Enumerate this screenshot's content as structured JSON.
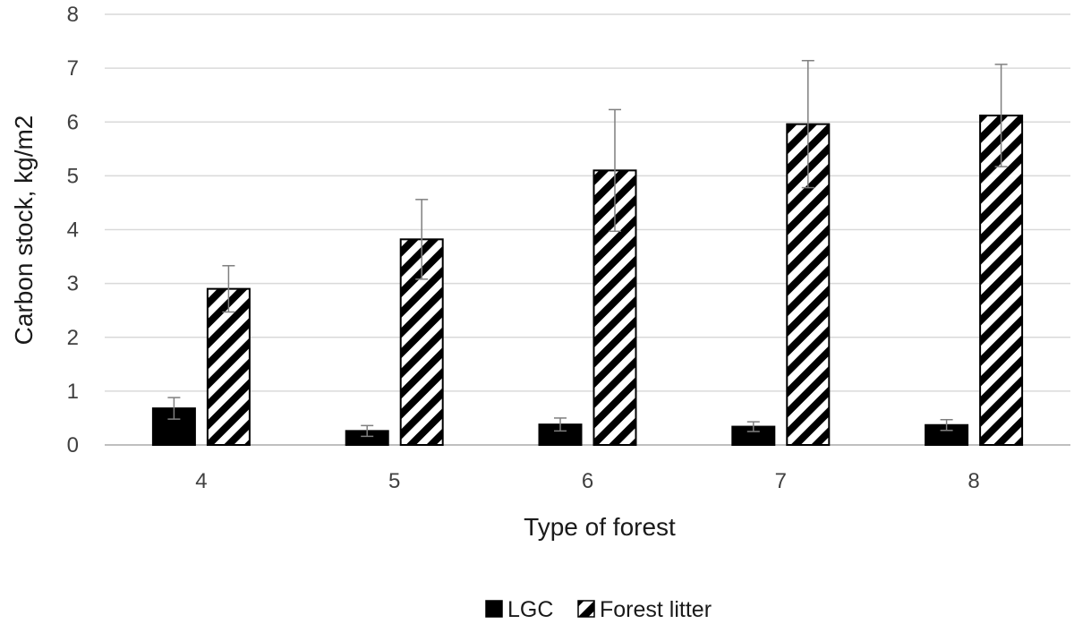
{
  "chart_data": {
    "type": "bar",
    "title": "",
    "xlabel": "Type of forest",
    "ylabel": "Carbon stock, kg/m2",
    "categories": [
      "4",
      "5",
      "6",
      "7",
      "8"
    ],
    "ylim": [
      0,
      8
    ],
    "yticks": [
      "0",
      "1",
      "2",
      "3",
      "4",
      "5",
      "6",
      "7",
      "8"
    ],
    "grid": true,
    "legend_position": "bottom",
    "series": [
      {
        "name": "LGC",
        "values": [
          0.68,
          0.26,
          0.38,
          0.34,
          0.37
        ],
        "errors": [
          0.2,
          0.1,
          0.12,
          0.09,
          0.1
        ],
        "fill": "solid",
        "color": "#000000"
      },
      {
        "name": "Forest litter",
        "values": [
          2.9,
          3.82,
          5.1,
          5.96,
          6.12
        ],
        "errors": [
          0.43,
          0.74,
          1.13,
          1.18,
          0.95
        ],
        "fill": "hatched",
        "color": "#000000"
      }
    ],
    "colors": {
      "gridline": "#d9d9d9",
      "axis": "#bfbfbf",
      "errorbar": "#7f7f7f"
    }
  }
}
